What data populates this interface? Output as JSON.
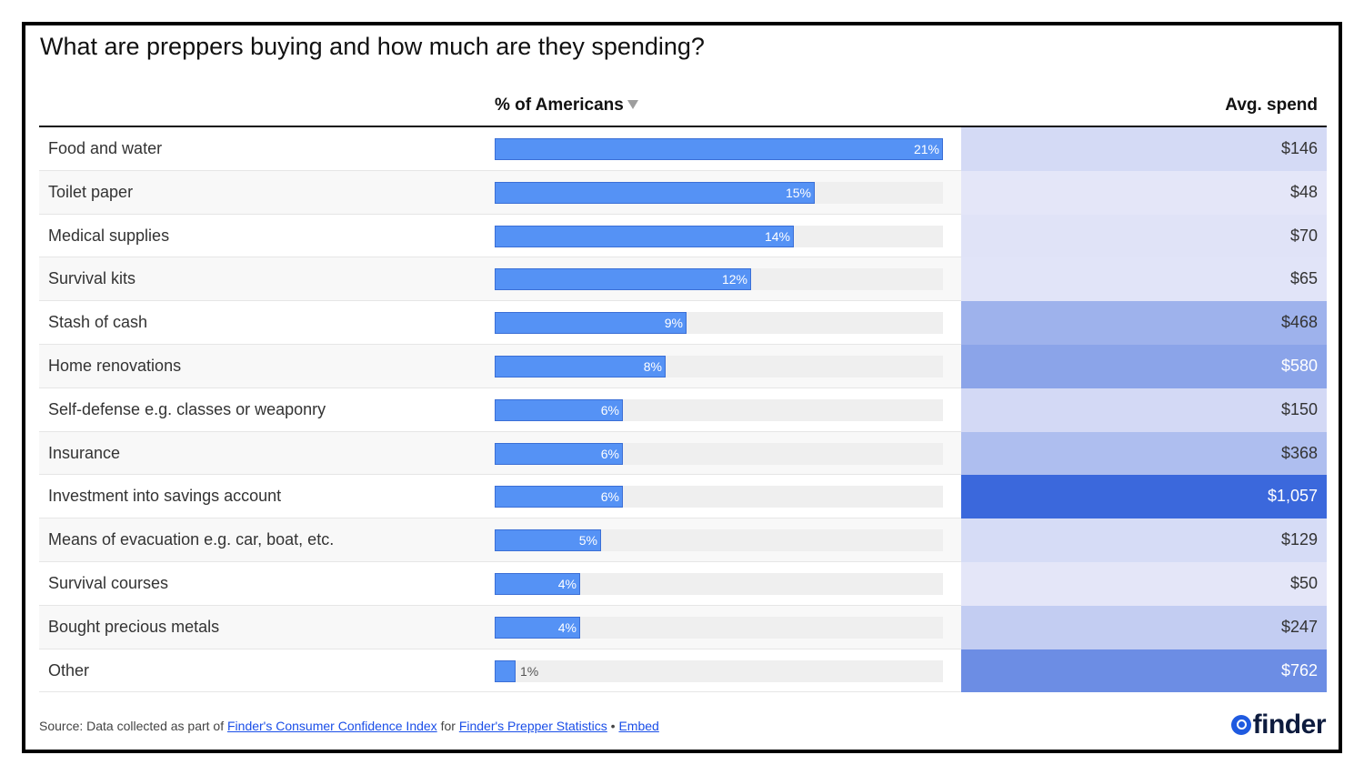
{
  "title": "What are preppers buying and how much are they spending?",
  "header": {
    "pct_label": "% of Americans",
    "spend_label": "Avg. spend"
  },
  "chart_data": {
    "type": "table",
    "columns": [
      "",
      "% of Americans",
      "Avg. spend"
    ],
    "sort_column": "% of Americans",
    "sort_direction": "descending",
    "bar_max": 21,
    "spend_color_low": "#e4e6f8",
    "spend_color_high": "#3b68dc",
    "rows": [
      {
        "label": "Food and water",
        "pct": 21,
        "pct_text": "21%",
        "spend": 146,
        "spend_text": "$146"
      },
      {
        "label": "Toilet paper",
        "pct": 15,
        "pct_text": "15%",
        "spend": 48,
        "spend_text": "$48"
      },
      {
        "label": "Medical supplies",
        "pct": 14,
        "pct_text": "14%",
        "spend": 70,
        "spend_text": "$70"
      },
      {
        "label": "Survival kits",
        "pct": 12,
        "pct_text": "12%",
        "spend": 65,
        "spend_text": "$65"
      },
      {
        "label": "Stash of cash",
        "pct": 9,
        "pct_text": "9%",
        "spend": 468,
        "spend_text": "$468"
      },
      {
        "label": "Home renovations",
        "pct": 8,
        "pct_text": "8%",
        "spend": 580,
        "spend_text": "$580"
      },
      {
        "label": "Self-defense e.g. classes or weaponry",
        "pct": 6,
        "pct_text": "6%",
        "spend": 150,
        "spend_text": "$150"
      },
      {
        "label": "Insurance",
        "pct": 6,
        "pct_text": "6%",
        "spend": 368,
        "spend_text": "$368"
      },
      {
        "label": "Investment into savings account",
        "pct": 6,
        "pct_text": "6%",
        "spend": 1057,
        "spend_text": "$1,057"
      },
      {
        "label": "Means of evacuation e.g. car, boat, etc.",
        "pct": 5,
        "pct_text": "5%",
        "spend": 129,
        "spend_text": "$129"
      },
      {
        "label": "Survival courses",
        "pct": 4,
        "pct_text": "4%",
        "spend": 50,
        "spend_text": "$50"
      },
      {
        "label": "Bought precious metals",
        "pct": 4,
        "pct_text": "4%",
        "spend": 247,
        "spend_text": "$247"
      },
      {
        "label": "Other",
        "pct": 1,
        "pct_text": "1%",
        "spend": 762,
        "spend_text": "$762"
      }
    ]
  },
  "footer": {
    "prefix": "Source: Data collected as part of ",
    "link1": "Finder's Consumer Confidence Index",
    "middle": " for ",
    "link2": "Finder's Prepper Statistics",
    "separator": " • ",
    "link3": "Embed"
  },
  "logo": {
    "text": "finder",
    "icon": "search-magnifier-icon",
    "icon_color": "#1f5ae0"
  }
}
